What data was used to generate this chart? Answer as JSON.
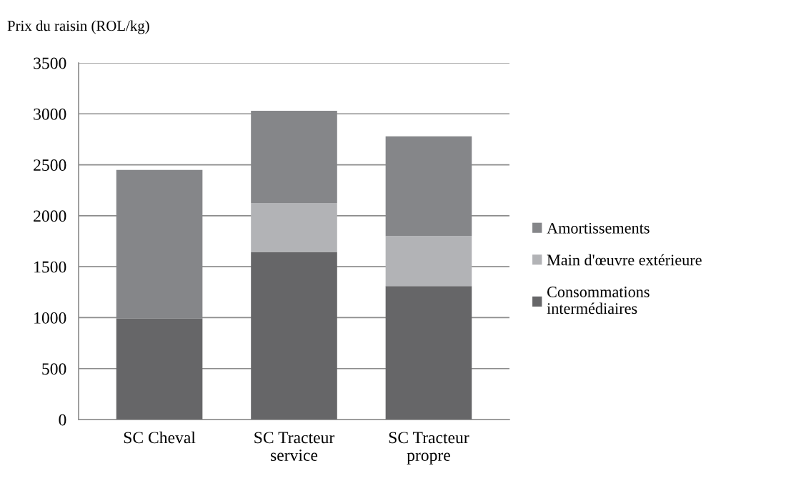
{
  "chart_data": {
    "type": "bar",
    "stacked": true,
    "ylabel": "Prix du raisin (ROL/kg)",
    "categories": [
      "SC Cheval",
      "SC Tracteur\nservice",
      "SC Tracteur\npropre"
    ],
    "series": [
      {
        "name": "Consommations\nintermédiaires",
        "color": "#666668",
        "values": [
          990,
          1645,
          1310
        ]
      },
      {
        "name": "Main d'œuvre extérieure",
        "color": "#b2b3b6",
        "values": [
          0,
          480,
          490
        ]
      },
      {
        "name": "Amortissements",
        "color": "#858689",
        "values": [
          1460,
          905,
          980
        ]
      }
    ],
    "ylim": [
      0,
      3500
    ],
    "yticks": [
      0,
      500,
      1000,
      1500,
      2000,
      2500,
      3000,
      3500
    ],
    "grid": "y",
    "legend": "right"
  }
}
